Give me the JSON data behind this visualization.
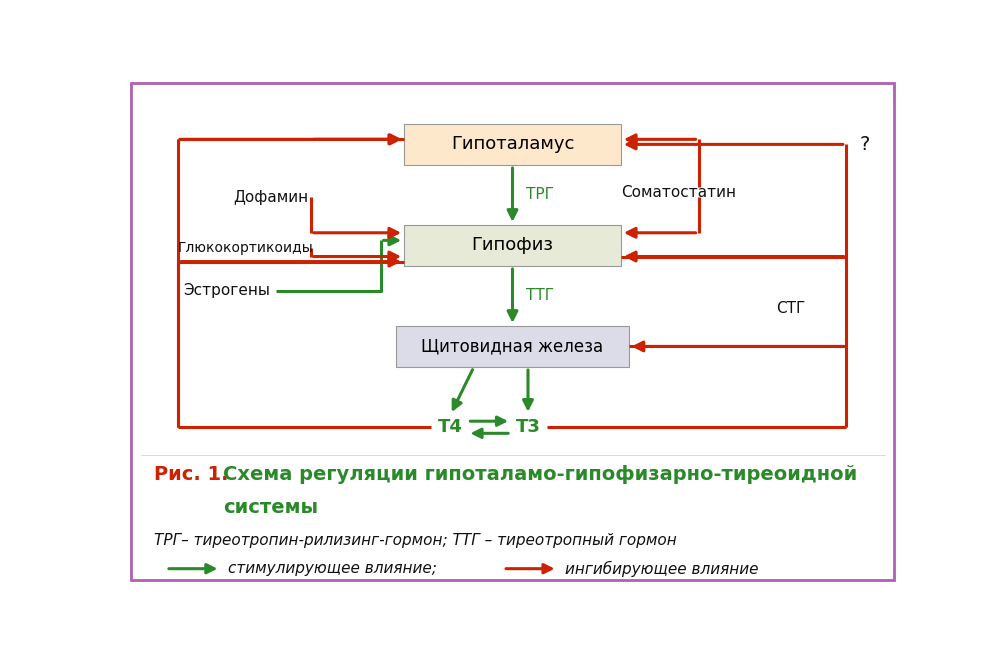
{
  "background_color": "#ffffff",
  "border_color": "#b060b0",
  "hyp_color": "#fde8cc",
  "pit_color": "#e8ead8",
  "thy_color": "#dcdce8",
  "green_color": "#2a8a2a",
  "red_color": "#cc2200",
  "black_color": "#111111",
  "label_hyp": "Гипоталамус",
  "label_pit": "Гипофиз",
  "label_thy": "Щитовидная железа",
  "label_trg": "ТРГ",
  "label_ttg": "ТТГ",
  "label_t4": "Т4",
  "label_t3": "Т3",
  "label_dopamine": "Дофамин",
  "label_gluco": "Глюкокортикоиды",
  "label_estrogen": "Эстрогены",
  "label_somatostatin": "Соматостатин",
  "label_stg": "СТГ",
  "label_question": "?",
  "caption_ric": "Рис. 1.",
  "caption_title": "Схема регуляции гипоталамо-гипофизарно-тиреоидной системы",
  "caption_abbrev": "ТРГ– тиреотропин-рилизинг-гормон; ТТГ – тиреотропный гормон",
  "caption_stim": "стимулирующее влияние;",
  "caption_inhib": "ингибирующее влияние"
}
